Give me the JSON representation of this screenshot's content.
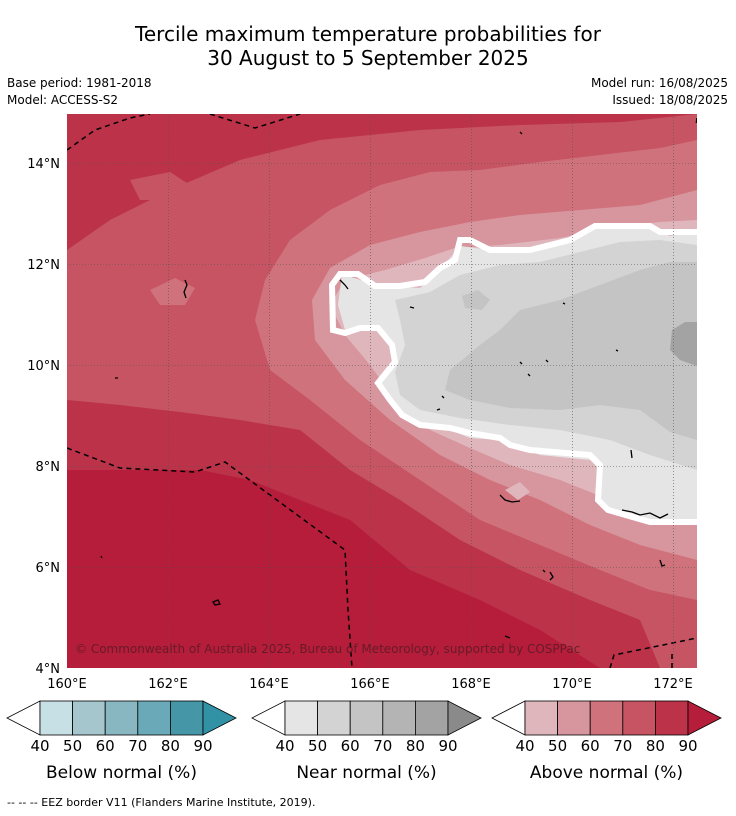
{
  "title_line1": "Tercile maximum temperature probabilities for",
  "title_line2": "30 August to 5 September 2025",
  "base_period": "Base period: 1981-2018",
  "model": "Model: ACCESS-S2",
  "model_run": "Model run: 16/08/2025",
  "issued": "Issued: 18/08/2025",
  "copyright": "© Commonwealth of Australia 2025, Bureau of Meteorology, supported by COSPPac",
  "footer_note": "-- -- -- EEZ border V11 (Flanders Marine Institute, 2019).",
  "axes": {
    "lat_ticks": [
      "14°N",
      "12°N",
      "10°N",
      "8°N",
      "6°N",
      "4°N"
    ],
    "lon_ticks": [
      "160°E",
      "162°E",
      "164°E",
      "166°E",
      "168°E",
      "170°E",
      "172°E"
    ]
  },
  "legends": [
    {
      "label": "Below normal (%)",
      "ticks": [
        "40",
        "50",
        "60",
        "70",
        "80",
        "90"
      ],
      "colors": [
        "#ffffff",
        "#c7e0e6",
        "#a5c6cc",
        "#88b7c2",
        "#6aaab8",
        "#4597a8",
        "#3191a5"
      ]
    },
    {
      "label": "Near normal (%)",
      "ticks": [
        "40",
        "50",
        "60",
        "70",
        "80",
        "90"
      ],
      "colors": [
        "#ffffff",
        "#e5e5e5",
        "#d3d3d3",
        "#c4c4c4",
        "#b4b4b4",
        "#a3a3a3",
        "#8a8a8a"
      ]
    },
    {
      "label": "Above normal (%)",
      "ticks": [
        "40",
        "50",
        "60",
        "70",
        "80",
        "90"
      ],
      "colors": [
        "#ffffff",
        "#e0b6bd",
        "#d7959e",
        "#cf727c",
        "#c65462",
        "#bb3249",
        "#b51d3b"
      ]
    }
  ]
}
